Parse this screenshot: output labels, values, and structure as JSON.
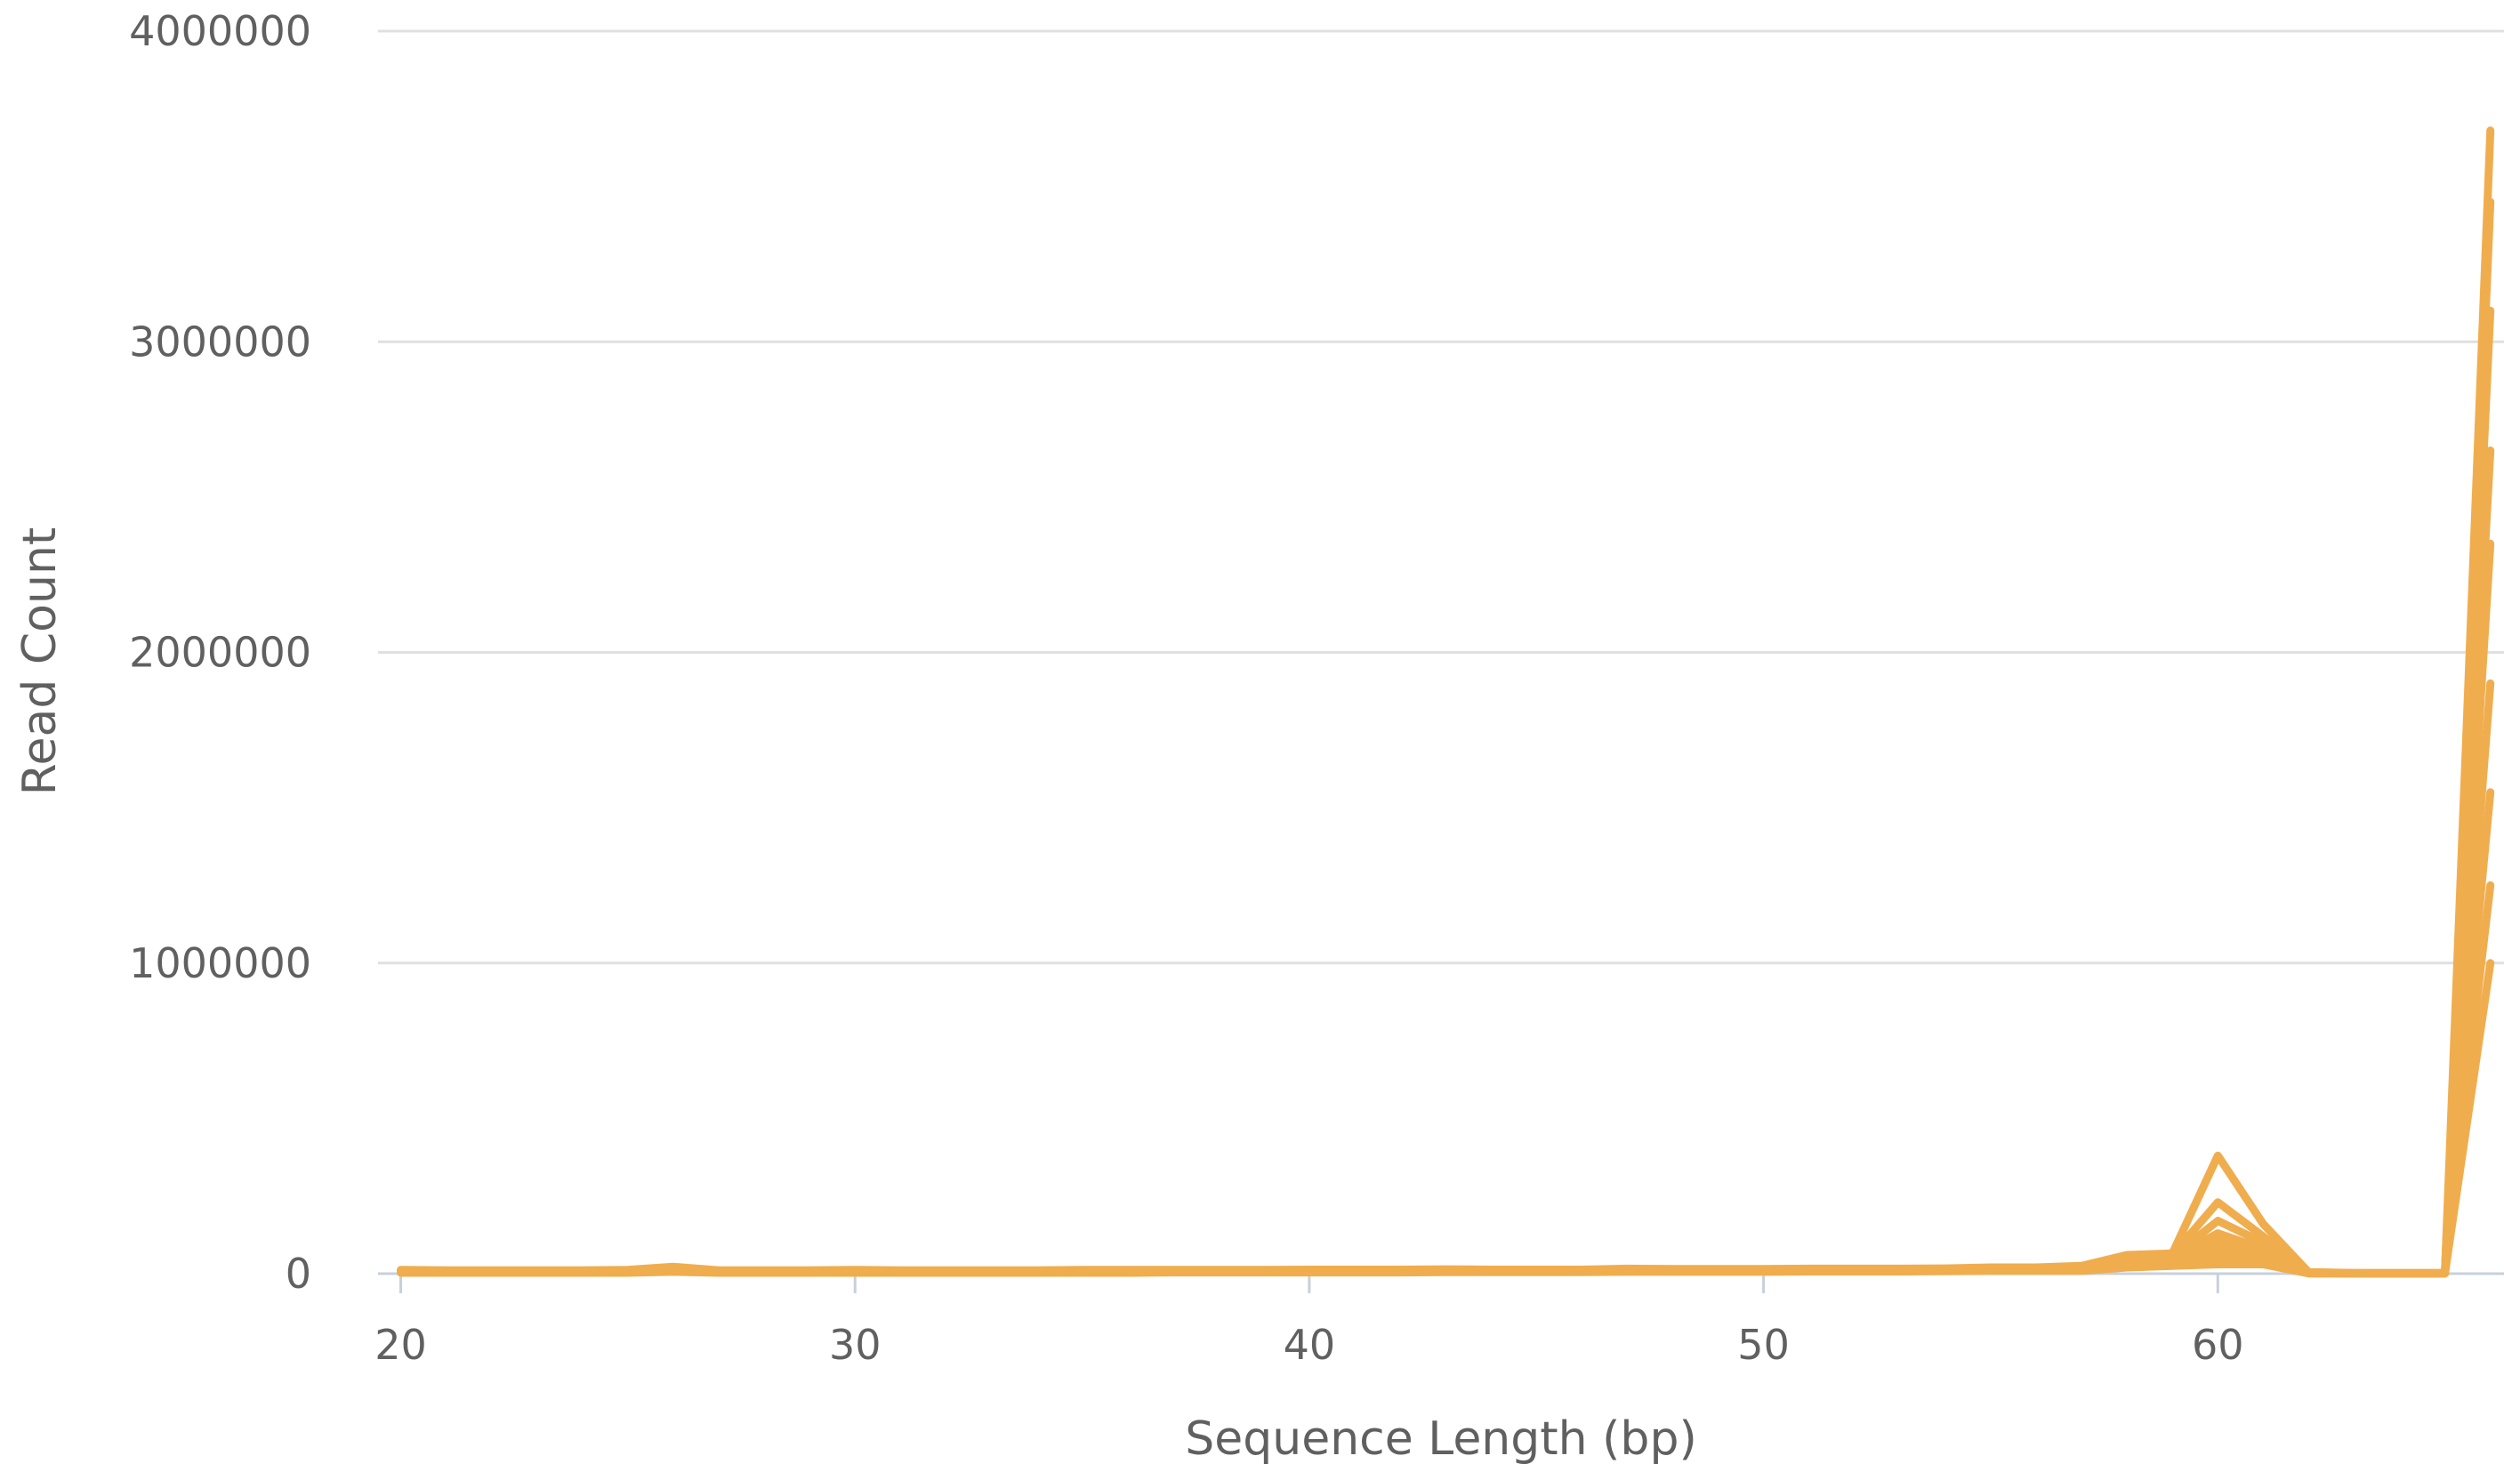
{
  "chart_data": {
    "type": "line",
    "title": "",
    "xlabel": "Sequence Length (bp)",
    "ylabel": "Read Count",
    "xlim": [
      19.5,
      66.3
    ],
    "ylim": [
      0,
      4000000
    ],
    "x_ticks": [
      "20",
      "30",
      "40",
      "50",
      "60"
    ],
    "x_tick_values": [
      20,
      30,
      40,
      50,
      60
    ],
    "y_ticks": [
      "0",
      "1000000",
      "2000000",
      "3000000",
      "4000000"
    ],
    "y_tick_values": [
      0,
      1000000,
      2000000,
      3000000,
      4000000
    ],
    "grid": true,
    "legend": "none",
    "color": "#f0ad4e",
    "x": [
      20,
      21,
      22,
      23,
      24,
      25,
      26,
      27,
      28,
      29,
      30,
      31,
      32,
      33,
      34,
      35,
      36,
      37,
      38,
      39,
      40,
      41,
      42,
      43,
      44,
      45,
      46,
      47,
      48,
      49,
      50,
      51,
      52,
      53,
      54,
      55,
      56,
      57,
      58,
      59,
      60,
      61,
      62,
      63,
      64,
      65,
      66
    ],
    "series": [
      {
        "values": [
          12000,
          11000,
          11000,
          11000,
          11000,
          12000,
          22000,
          11000,
          11000,
          11000,
          12000,
          11000,
          11000,
          11000,
          11000,
          12000,
          12000,
          12000,
          12000,
          12000,
          13000,
          13000,
          13000,
          14000,
          13000,
          13000,
          13000,
          16000,
          15000,
          15000,
          15000,
          16000,
          16000,
          16000,
          17000,
          20000,
          20000,
          25000,
          60000,
          65000,
          380000,
          160000,
          5000,
          2000,
          2000,
          2000,
          3680000
        ]
      },
      {
        "values": [
          10000,
          10000,
          10000,
          10000,
          10000,
          10000,
          18000,
          10000,
          10000,
          10000,
          10000,
          10000,
          10000,
          10000,
          10000,
          10000,
          10000,
          11000,
          11000,
          11000,
          11000,
          11000,
          12000,
          12000,
          12000,
          12000,
          12000,
          14000,
          13000,
          13000,
          13000,
          14000,
          14000,
          14000,
          15000,
          18000,
          18000,
          22000,
          55000,
          60000,
          230000,
          120000,
          4000,
          2000,
          2000,
          2000,
          3450000
        ]
      },
      {
        "values": [
          9000,
          9000,
          9000,
          9000,
          9000,
          9000,
          16000,
          9000,
          9000,
          9000,
          9000,
          9000,
          9000,
          9000,
          9000,
          9000,
          9000,
          10000,
          10000,
          10000,
          10000,
          10000,
          10000,
          11000,
          11000,
          11000,
          11000,
          13000,
          12000,
          12000,
          12000,
          13000,
          13000,
          13000,
          14000,
          16000,
          16000,
          20000,
          50000,
          55000,
          170000,
          100000,
          3000,
          1000,
          1000,
          1000,
          3100000
        ]
      },
      {
        "values": [
          8000,
          8000,
          8000,
          8000,
          8000,
          8000,
          14000,
          8000,
          8000,
          8000,
          8000,
          8000,
          8000,
          8000,
          8000,
          8000,
          8000,
          9000,
          9000,
          9000,
          9000,
          9000,
          9000,
          10000,
          10000,
          10000,
          10000,
          12000,
          11000,
          11000,
          11000,
          12000,
          12000,
          12000,
          13000,
          15000,
          15000,
          18000,
          45000,
          50000,
          130000,
          80000,
          3000,
          1000,
          1000,
          1000,
          2650000
        ]
      },
      {
        "values": [
          7000,
          7000,
          7000,
          7000,
          7000,
          7000,
          12000,
          7000,
          7000,
          7000,
          7000,
          7000,
          7000,
          7000,
          7000,
          7000,
          7000,
          8000,
          8000,
          8000,
          8000,
          8000,
          8000,
          9000,
          9000,
          9000,
          9000,
          10000,
          10000,
          10000,
          10000,
          11000,
          11000,
          11000,
          12000,
          14000,
          14000,
          16000,
          40000,
          45000,
          110000,
          70000,
          2000,
          1000,
          1000,
          1000,
          2350000
        ]
      },
      {
        "values": [
          6000,
          6000,
          6000,
          6000,
          6000,
          6000,
          10000,
          6000,
          6000,
          6000,
          6000,
          6000,
          6000,
          6000,
          6000,
          6000,
          6000,
          7000,
          7000,
          7000,
          7000,
          7000,
          7000,
          8000,
          8000,
          8000,
          8000,
          9000,
          9000,
          9000,
          9000,
          10000,
          10000,
          10000,
          11000,
          12000,
          12000,
          14000,
          35000,
          40000,
          90000,
          60000,
          2000,
          1000,
          1000,
          1000,
          1900000
        ]
      },
      {
        "values": [
          5000,
          5000,
          5000,
          5000,
          5000,
          5000,
          9000,
          5000,
          5000,
          5000,
          5000,
          5000,
          5000,
          5000,
          5000,
          5000,
          5000,
          6000,
          6000,
          6000,
          6000,
          6000,
          6000,
          7000,
          7000,
          7000,
          7000,
          8000,
          8000,
          8000,
          8000,
          9000,
          9000,
          9000,
          10000,
          11000,
          11000,
          12000,
          30000,
          35000,
          70000,
          50000,
          2000,
          1000,
          1000,
          1000,
          1550000
        ]
      },
      {
        "values": [
          4000,
          4000,
          4000,
          4000,
          4000,
          4000,
          7000,
          4000,
          4000,
          4000,
          4000,
          4000,
          4000,
          4000,
          4000,
          4000,
          4000,
          5000,
          5000,
          5000,
          5000,
          5000,
          5000,
          6000,
          6000,
          6000,
          6000,
          7000,
          7000,
          7000,
          7000,
          8000,
          8000,
          8000,
          9000,
          10000,
          10000,
          10000,
          25000,
          30000,
          50000,
          40000,
          1000,
          1000,
          1000,
          1000,
          1250000
        ]
      },
      {
        "values": [
          3000,
          3000,
          3000,
          3000,
          3000,
          3000,
          6000,
          3000,
          3000,
          3000,
          3000,
          3000,
          3000,
          3000,
          3000,
          3000,
          3000,
          4000,
          4000,
          4000,
          4000,
          4000,
          4000,
          5000,
          5000,
          5000,
          5000,
          6000,
          6000,
          6000,
          6000,
          7000,
          7000,
          7000,
          8000,
          9000,
          9000,
          9000,
          20000,
          25000,
          30000,
          30000,
          1000,
          1000,
          1000,
          1000,
          1000000
        ]
      }
    ]
  }
}
